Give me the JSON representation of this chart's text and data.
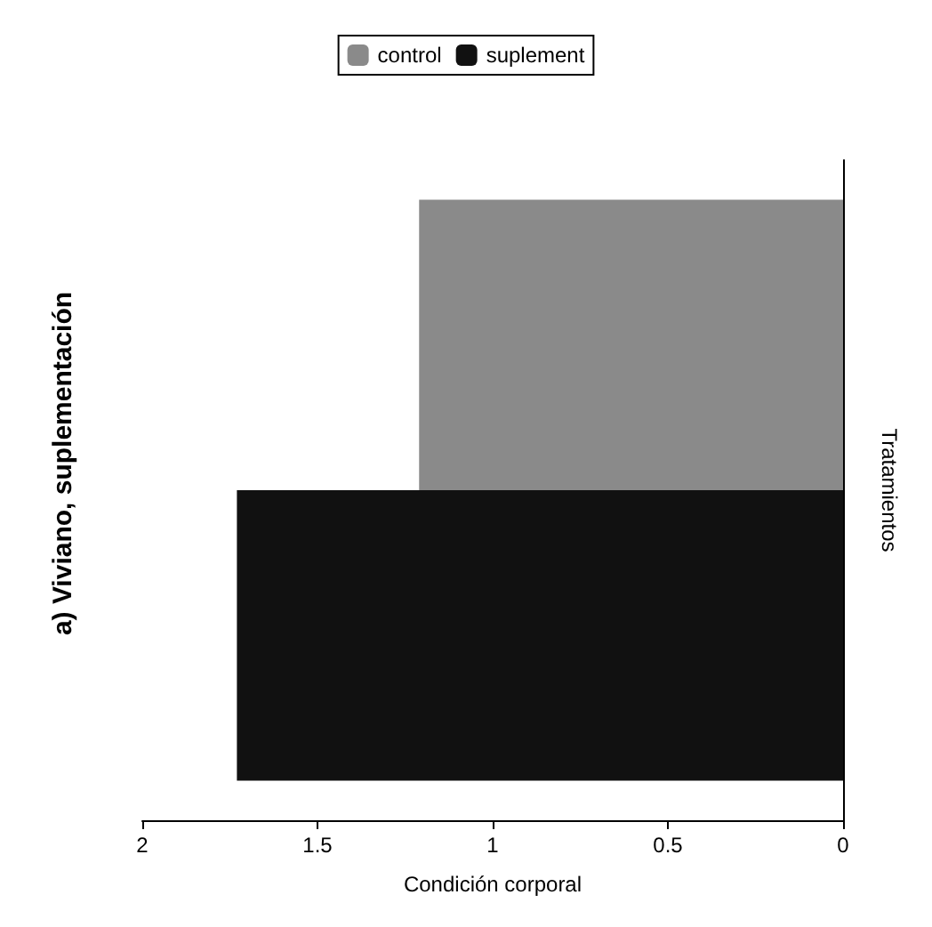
{
  "chart_data": {
    "type": "bar",
    "orientation": "horizontal",
    "title": "a) Viviano, suplementación",
    "xlabel": "Condición corporal",
    "ylabel": "Tratamientos",
    "categories": [
      null
    ],
    "series": [
      {
        "name": "control",
        "color": "#8a8a8a",
        "values": [
          1.21
        ]
      },
      {
        "name": "suplement",
        "color": "#111111",
        "values": [
          1.73
        ]
      }
    ],
    "xlim": [
      2,
      0
    ],
    "xticks": [
      2,
      1.5,
      1,
      0.5,
      0
    ],
    "grid": false,
    "legend": "top"
  }
}
